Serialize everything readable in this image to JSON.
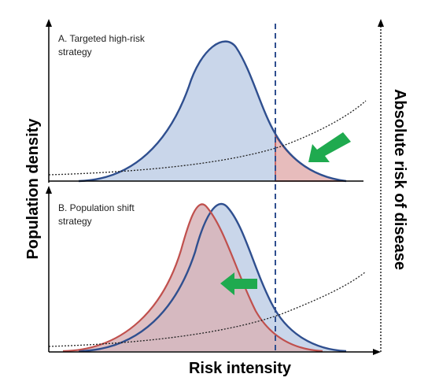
{
  "diagram": {
    "y_axis_left": "Population density",
    "y_axis_right": "Absolute risk of disease",
    "x_axis": "Risk intensity",
    "panel_a": {
      "label_line1": "A. Targeted high-risk",
      "label_line2": "strategy"
    },
    "panel_b": {
      "label_line1": "B. Population shift",
      "label_line2": "strategy"
    }
  },
  "colors": {
    "blue_stroke": "#2f4f8f",
    "blue_fill": "#c9d6ea",
    "red_stroke": "#c0504d",
    "red_fill": "#e7bcbc",
    "overlap_fill": "#d8b4b8",
    "arrow_green": "#1faa4f",
    "axis": "#000000",
    "cutoff_line": "#2f4f8f"
  },
  "icons": {
    "panel_a_arrow": "green-arrow-pointing-down-left",
    "panel_b_arrow": "green-arrow-pointing-left"
  }
}
